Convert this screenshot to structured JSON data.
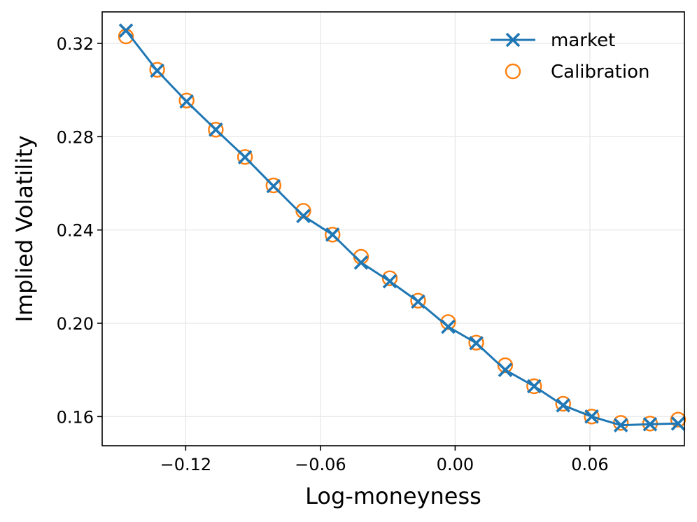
{
  "chart_data": {
    "type": "line",
    "title": "",
    "xlabel": "Log-moneyness",
    "ylabel": "Implied Volatility",
    "xlim": [
      -0.1572,
      0.1021
    ],
    "ylim": [
      0.1475,
      0.3335
    ],
    "xticks": [
      -0.12,
      -0.06,
      0.0,
      0.06
    ],
    "xtick_labels": [
      "−0.12",
      "−0.06",
      "0.00",
      "0.06"
    ],
    "yticks": [
      0.16,
      0.2,
      0.24,
      0.28,
      0.32
    ],
    "ytick_labels": [
      "0.16",
      "0.20",
      "0.24",
      "0.28",
      "0.32"
    ],
    "grid": true,
    "legend_position": "top-right",
    "series": [
      {
        "name": "market",
        "style": "line-x-marker",
        "color": "#1f77b4",
        "x": [
          -0.1466,
          -0.1327,
          -0.1196,
          -0.1066,
          -0.0936,
          -0.0809,
          -0.0676,
          -0.0546,
          -0.0419,
          -0.0291,
          -0.0165,
          -0.0031,
          0.0094,
          0.0223,
          0.0352,
          0.0481,
          0.0608,
          0.0738,
          0.0868,
          0.0993
        ],
        "y": [
          0.3255,
          0.3083,
          0.2951,
          0.283,
          0.2712,
          0.2588,
          0.246,
          0.238,
          0.226,
          0.218,
          0.2093,
          0.1985,
          0.1915,
          0.18,
          0.173,
          0.1648,
          0.16,
          0.1563,
          0.1567,
          0.157
        ]
      },
      {
        "name": "Calibration",
        "style": "hollow-circle",
        "color": "#ff7f0e",
        "x": [
          -0.1466,
          -0.1327,
          -0.1196,
          -0.1066,
          -0.0936,
          -0.0809,
          -0.0676,
          -0.0546,
          -0.0419,
          -0.0291,
          -0.0165,
          -0.0031,
          0.0094,
          0.0223,
          0.0352,
          0.0481,
          0.0608,
          0.0738,
          0.0868,
          0.0993
        ],
        "y": [
          0.323,
          0.3087,
          0.2955,
          0.283,
          0.2713,
          0.2591,
          0.2482,
          0.238,
          0.2285,
          0.2193,
          0.2097,
          0.2005,
          0.1917,
          0.182,
          0.173,
          0.1655,
          0.16,
          0.1573,
          0.157,
          0.1587
        ]
      }
    ]
  }
}
